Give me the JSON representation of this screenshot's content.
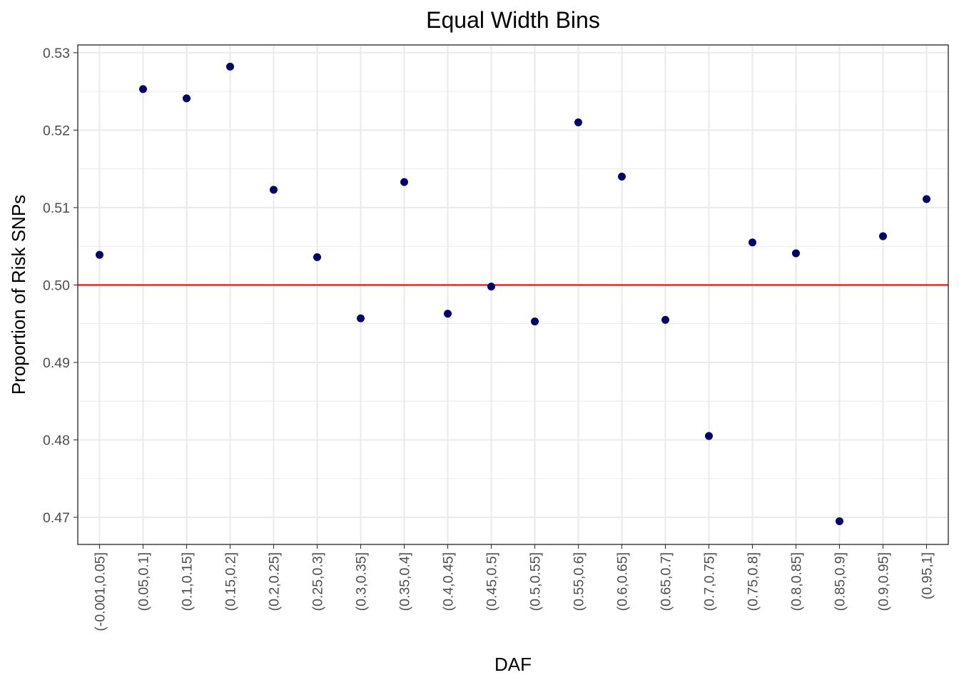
{
  "chart_data": {
    "type": "scatter",
    "title": "Equal Width Bins",
    "xlabel": "DAF",
    "ylabel": "Proportion of Risk SNPs",
    "categories": [
      "(-0.001,0.05]",
      "(0.05,0.1]",
      "(0.1,0.15]",
      "(0.15,0.2]",
      "(0.2,0.25]",
      "(0.25,0.3]",
      "(0.3,0.35]",
      "(0.35,0.4]",
      "(0.4,0.45]",
      "(0.45,0.5]",
      "(0.5,0.55]",
      "(0.55,0.6]",
      "(0.6,0.65]",
      "(0.65,0.7]",
      "(0.7,0.75]",
      "(0.75,0.8]",
      "(0.8,0.85]",
      "(0.85,0.9]",
      "(0.9,0.95]",
      "(0.95,1]"
    ],
    "values": [
      0.5039,
      0.5253,
      0.5241,
      0.5282,
      0.5123,
      0.5036,
      0.4957,
      0.5133,
      0.4963,
      0.4998,
      0.4953,
      0.521,
      0.514,
      0.4955,
      0.4805,
      0.5055,
      0.5041,
      0.4695,
      0.5063,
      0.5111
    ],
    "ylim": [
      0.4665,
      0.531
    ],
    "yticks": [
      0.47,
      0.48,
      0.49,
      0.5,
      0.51,
      0.52,
      0.53
    ],
    "ytick_labels": [
      "0.47",
      "0.48",
      "0.49",
      "0.50",
      "0.51",
      "0.52",
      "0.53"
    ],
    "hline": 0.5,
    "point_color": "#000066",
    "hline_color": "#ff0000",
    "grid": true,
    "legend": "none"
  }
}
